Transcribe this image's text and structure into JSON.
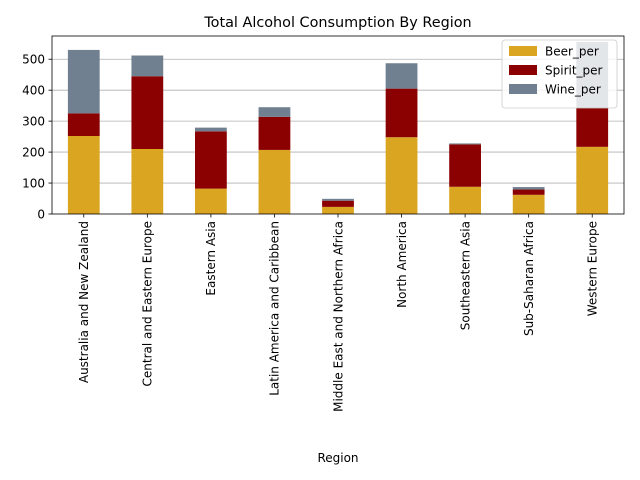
{
  "chart_data": {
    "type": "bar",
    "stacked": true,
    "title": "Total Alcohol Consumption By Region",
    "xlabel": "Region",
    "ylabel": "",
    "ylim": [
      0,
      575
    ],
    "yticks": [
      0,
      100,
      200,
      300,
      400,
      500
    ],
    "grid": "horizontal",
    "legend_position": "top-right",
    "categories": [
      "Australia and New Zealand",
      "Central and Eastern Europe",
      "Eastern Asia",
      "Latin America and Caribbean",
      "Middle East and Northern Africa",
      "North America",
      "Southeastern Asia",
      "Sub-Saharan Africa",
      "Western Europe"
    ],
    "series": [
      {
        "name": "Beer_per",
        "color": "#daa520",
        "values": [
          252,
          210,
          82,
          207,
          23,
          248,
          88,
          62,
          217
        ]
      },
      {
        "name": "Spirit_per",
        "color": "#8b0000",
        "values": [
          73,
          235,
          185,
          107,
          20,
          157,
          137,
          17,
          127
        ]
      },
      {
        "name": "Wine_per",
        "color": "#708090",
        "values": [
          205,
          67,
          12,
          31,
          6,
          82,
          3,
          8,
          212
        ]
      }
    ]
  }
}
